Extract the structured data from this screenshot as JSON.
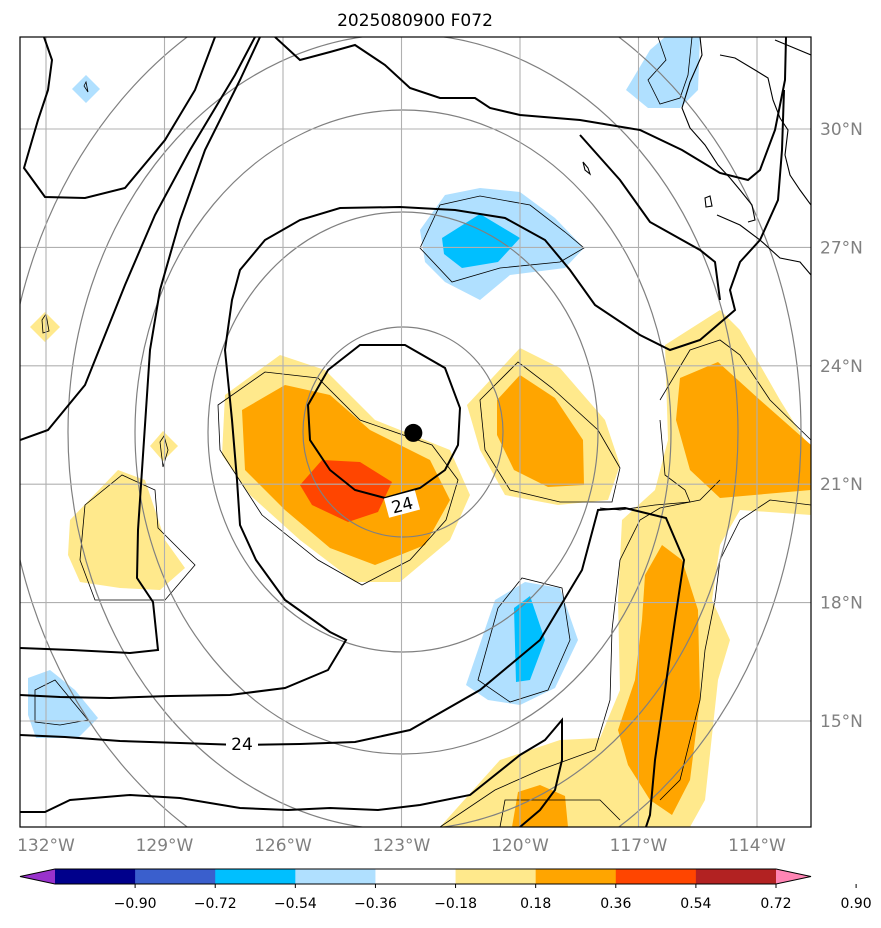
{
  "title": "2025080900 F072",
  "map": {
    "lon_ticks": [
      {
        "value": -132,
        "label": "132°W"
      },
      {
        "value": -129,
        "label": "129°W"
      },
      {
        "value": -126,
        "label": "126°W"
      },
      {
        "value": -123,
        "label": "123°W"
      },
      {
        "value": -120,
        "label": "120°W"
      },
      {
        "value": -117,
        "label": "117°W"
      },
      {
        "value": -114,
        "label": "114°W"
      }
    ],
    "lat_ticks": [
      {
        "value": 15,
        "label": "15°N"
      },
      {
        "value": 18,
        "label": "18°N"
      },
      {
        "value": 21,
        "label": "21°N"
      },
      {
        "value": 24,
        "label": "24°N"
      },
      {
        "value": 27,
        "label": "27°N"
      },
      {
        "value": 30,
        "label": "30°N"
      }
    ],
    "contour_labels": [
      "24",
      "24"
    ],
    "center_marker": {
      "lon": -122.7,
      "lat": 22.3
    }
  },
  "colorbar": {
    "labels": [
      "−0.90",
      "−0.72",
      "−0.54",
      "−0.36",
      "−0.18",
      "0.18",
      "0.36",
      "0.54",
      "0.72",
      "0.90"
    ],
    "colors": [
      "#9932cc",
      "#00008b",
      "#3a5fcd",
      "#00bfff",
      "#b0e0ff",
      "#ffffff",
      "#ffe98c",
      "#ffa500",
      "#ff4500",
      "#b22222",
      "#ff85b4"
    ],
    "extend": "both"
  }
}
